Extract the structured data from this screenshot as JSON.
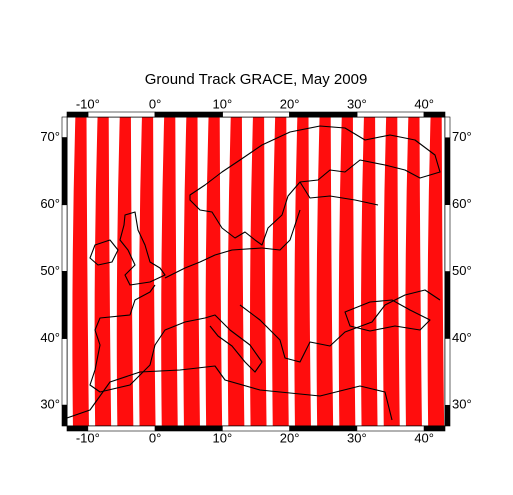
{
  "map": {
    "title": "Ground Track GRACE, May 2009",
    "xlim": [
      -13.1,
      43.1
    ],
    "ylim": [
      26.9,
      73.1
    ],
    "xticks": [
      {
        "value": -10,
        "label": "-10°"
      },
      {
        "value": 0,
        "label": "0°"
      },
      {
        "value": 10,
        "label": "10°"
      },
      {
        "value": 20,
        "label": "20°"
      },
      {
        "value": 30,
        "label": "30°"
      },
      {
        "value": 40,
        "label": "40°"
      }
    ],
    "yticks": [
      {
        "value": 30,
        "label": "30°"
      },
      {
        "value": 40,
        "label": "40°"
      },
      {
        "value": 50,
        "label": "50°"
      },
      {
        "value": 60,
        "label": "60°"
      },
      {
        "value": 70,
        "label": "70°"
      }
    ],
    "track_color": "#ff0000"
  }
}
